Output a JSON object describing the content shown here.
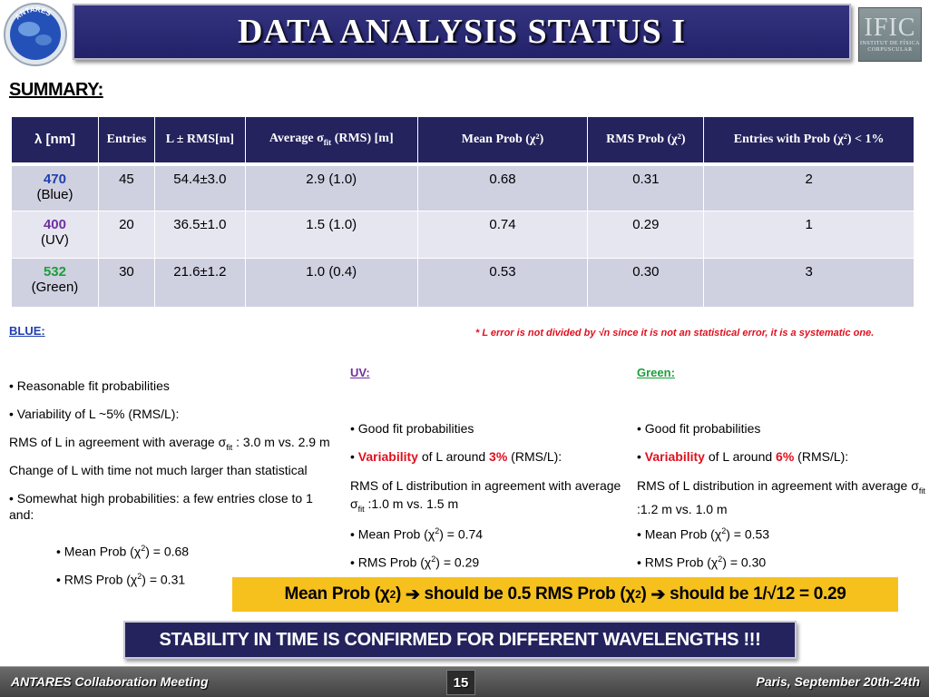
{
  "header": {
    "title": "DATA ANALYSIS STATUS I",
    "logo_left_text": "ANTARES",
    "logo_right_main": "IFIC",
    "logo_right_sub_1": "INSTITUT DE FÍSICA",
    "logo_right_sub_2": "CORPUSCULAR"
  },
  "summary_label": "SUMMARY:",
  "table": {
    "headers": {
      "lambda": "λ [nm]",
      "entries": "Entries",
      "l_rms": "L ± RMS[m]",
      "avg_sigma_pre": "Average σ",
      "avg_sigma_sub": "fit",
      "avg_sigma_post": " (RMS) [m]",
      "mean_prob": "Mean Prob (χ²)",
      "rms_prob": "RMS Prob (χ²)",
      "entries_prob": "Entries with Prob (χ²) < 1%"
    },
    "rows": [
      {
        "wavelength": "470",
        "color_name": "(Blue)",
        "entries": "45",
        "l_rms": "54.4±3.0",
        "avg_sigma": "2.9 (1.0)",
        "mean_prob": "0.68",
        "rms_prob": "0.31",
        "entries_low": "2"
      },
      {
        "wavelength": "400",
        "color_name": "(UV)",
        "entries": "20",
        "l_rms": "36.5±1.0",
        "avg_sigma": "1.5 (1.0)",
        "mean_prob": "0.74",
        "rms_prob": "0.29",
        "entries_low": "1"
      },
      {
        "wavelength": "532",
        "color_name": "(Green)",
        "entries": "30",
        "l_rms": "21.6±1.2",
        "avg_sigma": "1.0 (0.4)",
        "mean_prob": "0.53",
        "rms_prob": "0.30",
        "entries_low": "3"
      }
    ]
  },
  "note": "* L error is not divided by √n since it is not an statistical error, it is a systematic one.",
  "blue": {
    "heading": "BLUE:",
    "b1": "• Reasonable fit probabilities",
    "b2": "• Variability of L ~5% (RMS/L):",
    "b3_pre": "RMS of L in agreement with average σ",
    "b3_sub": "fit",
    "b3_post": " : 3.0 m vs. 2.9 m",
    "b4": "Change of L with time not much larger than statistical",
    "b5": "• Somewhat high probabilities: a few entries close to 1 and:",
    "b6_pre": "• Mean Prob (χ",
    "b6_post": ") = 0.68",
    "b7_pre": "• RMS Prob (χ",
    "b7_post": ") = 0.31"
  },
  "uv": {
    "heading": "UV:",
    "b1": "• Good fit probabilities",
    "b2_bullet": "• ",
    "b2_var": "Variability",
    "b2_mid": " of L around ",
    "b2_pct": "3%",
    "b2_post": " (RMS/L):",
    "b3_pre": "RMS of L distribution in agreement with average σ",
    "b3_sub": "fit",
    "b3_post": " :1.0 m vs. 1.5 m",
    "b4_pre": "• Mean Prob (χ",
    "b4_post": ") = 0.74",
    "b5_pre": "• RMS Prob (χ",
    "b5_post": ") = 0.29"
  },
  "green": {
    "heading": "Green:",
    "b1": "• Good fit probabilities",
    "b2_bullet": "• ",
    "b2_var": "Variability",
    "b2_mid": " of L around ",
    "b2_pct": "6%",
    "b2_post": " (RMS/L):",
    "b3_pre": "RMS of L distribution in agreement with average σ",
    "b3_sub": "fit",
    "b3_post": " :1.2 m vs. 1.0 m",
    "b4_pre": "• Mean Prob (χ",
    "b4_post": ") = 0.53",
    "b5_pre": "• RMS Prob (χ",
    "b5_post": ") = 0.30"
  },
  "sup2": "2",
  "formula": {
    "p1": "Mean Prob (χ",
    "p2": ") ",
    "arrow1": "➔",
    "p3": " should be 0.5 RMS Prob (χ",
    "p4": ") ",
    "arrow2": "➔",
    "p5": " should be 1/√12 = 0.29"
  },
  "stability": "STABILITY IN TIME IS CONFIRMED FOR DIFFERENT WAVELENGTHS !!!",
  "footer": {
    "left": "ANTARES Collaboration Meeting",
    "page": "15",
    "right": "Paris, September 20th-24th"
  },
  "colors": {
    "title_bar": "#24235e",
    "blue_text": "#1f3fb0",
    "purple_text": "#7030a0",
    "green_text": "#1c9e3a",
    "red_text": "#e0101e",
    "formula_bar": "#f6c11d"
  }
}
